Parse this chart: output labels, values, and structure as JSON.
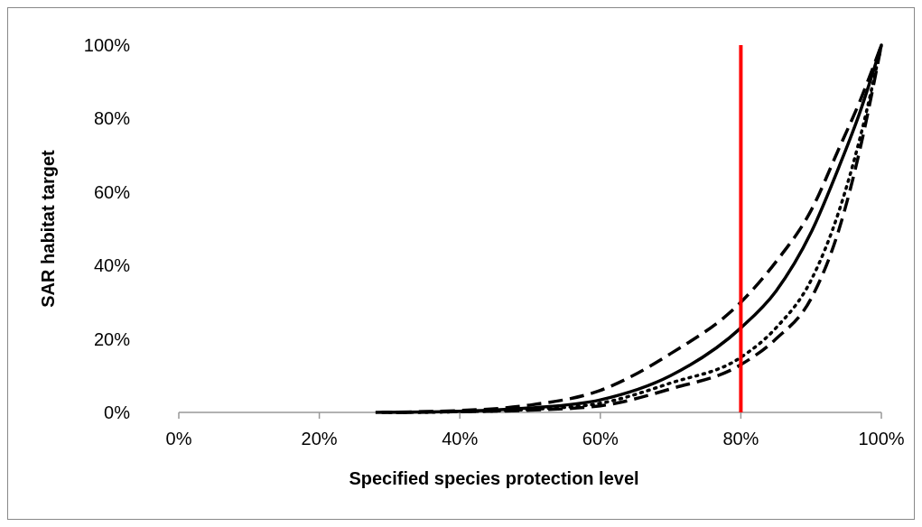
{
  "chart_data": {
    "type": "line",
    "xlabel": "Specified species protection level",
    "ylabel": "SAR habitat target",
    "xlim": [
      0,
      100
    ],
    "ylim": [
      0,
      100
    ],
    "xticks": [
      {
        "value": 0,
        "label": "0%"
      },
      {
        "value": 20,
        "label": "20%"
      },
      {
        "value": 40,
        "label": "40%"
      },
      {
        "value": 60,
        "label": "60%"
      },
      {
        "value": 80,
        "label": "80%"
      },
      {
        "value": 100,
        "label": "100%"
      }
    ],
    "yticks": [
      {
        "value": 0,
        "label": "0%"
      },
      {
        "value": 20,
        "label": "20%"
      },
      {
        "value": 40,
        "label": "40%"
      },
      {
        "value": 60,
        "label": "60%"
      },
      {
        "value": 80,
        "label": "80%"
      },
      {
        "value": 100,
        "label": "100%"
      }
    ],
    "grid": false,
    "marker": "none",
    "series": [
      {
        "color": "#000000",
        "line_style": "dashed",
        "x": [
          28,
          40,
          50,
          60,
          70,
          80,
          85,
          90,
          94,
          97,
          100
        ],
        "values": [
          0,
          0.5,
          2,
          6,
          16,
          30,
          41,
          55,
          72,
          85,
          100
        ]
      },
      {
        "color": "#000000",
        "line_style": "solid",
        "x": [
          29,
          40,
          50,
          60,
          70,
          80,
          85,
          90,
          94,
          97,
          100
        ],
        "values": [
          0,
          0.3,
          1.2,
          3.4,
          10,
          23,
          33,
          49,
          67,
          82,
          100
        ]
      },
      {
        "color": "#000000",
        "line_style": "dotted",
        "x": [
          30,
          40,
          50,
          60,
          70,
          80,
          85,
          90,
          94,
          97,
          100
        ],
        "values": [
          0,
          0.2,
          0.8,
          2.5,
          8,
          15,
          23,
          36,
          55,
          75,
          100
        ]
      },
      {
        "color": "#000000",
        "line_style": "dashed",
        "x": [
          31,
          40,
          50,
          60,
          70,
          80,
          85,
          90,
          94,
          97,
          100
        ],
        "values": [
          0,
          0.2,
          0.6,
          1.8,
          6.4,
          13,
          20,
          31,
          50,
          72,
          100
        ]
      }
    ],
    "ref_lines": [
      {
        "axis": "x",
        "value": 80,
        "color": "#ff0000",
        "line_style": "solid"
      }
    ]
  }
}
